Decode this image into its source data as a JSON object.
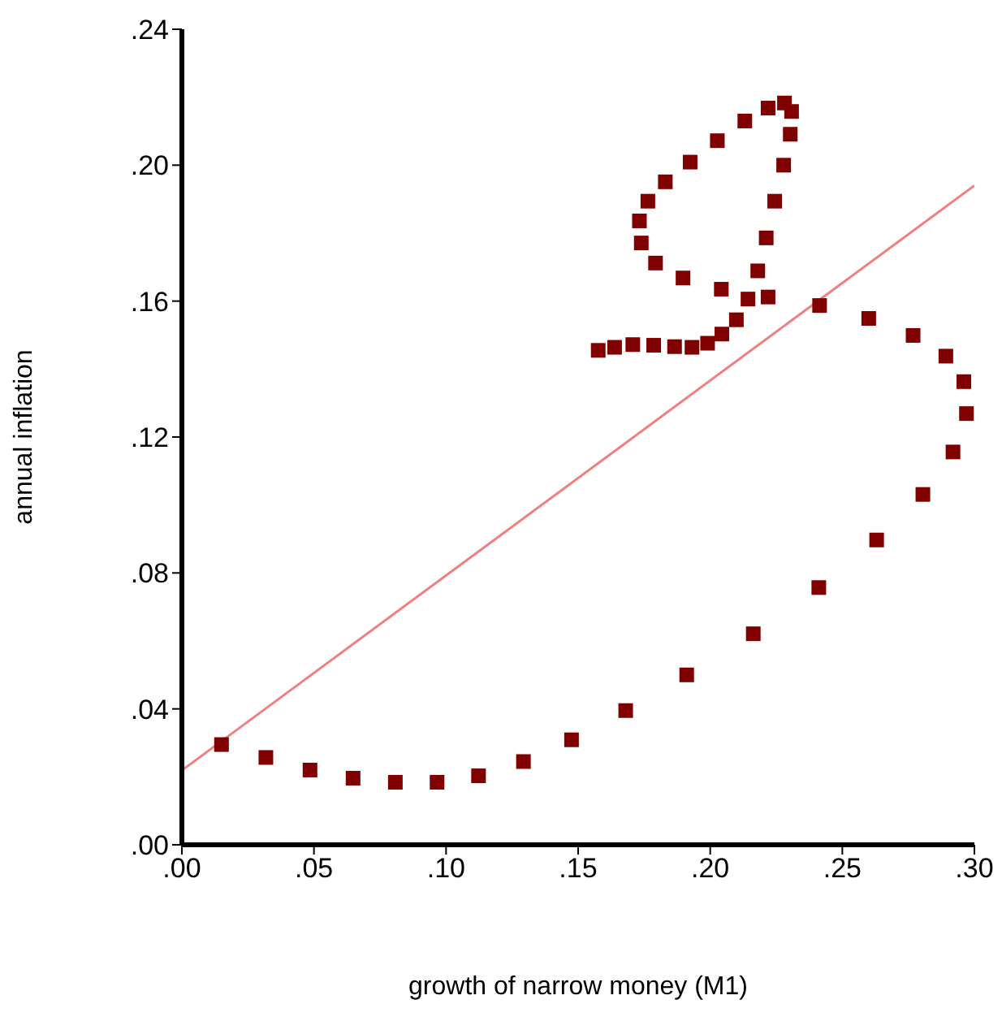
{
  "chart_data": {
    "type": "scatter",
    "xlabel": "growth of narrow money (M1)",
    "ylabel": "annual inflation",
    "xlim": [
      0,
      0.3
    ],
    "ylim": [
      0,
      0.24
    ],
    "xticks": [
      {
        "value": 0,
        "label": ".00"
      },
      {
        "value": 0.05,
        "label": ".05"
      },
      {
        "value": 0.1,
        "label": ".10"
      },
      {
        "value": 0.15,
        "label": ".15"
      },
      {
        "value": 0.2,
        "label": ".20"
      },
      {
        "value": 0.25,
        "label": ".25"
      },
      {
        "value": 0.3,
        "label": ".30"
      }
    ],
    "yticks": [
      {
        "value": 0,
        "label": ".00"
      },
      {
        "value": 0.04,
        "label": ".04"
      },
      {
        "value": 0.08,
        "label": ".08"
      },
      {
        "value": 0.12,
        "label": ".12"
      },
      {
        "value": 0.16,
        "label": ".16"
      },
      {
        "value": 0.2,
        "label": ".20"
      },
      {
        "value": 0.24,
        "label": ".24"
      }
    ],
    "grid": false,
    "series": [
      {
        "marker": "square",
        "color": "#800000",
        "x": [
          0.015,
          0.0318,
          0.0485,
          0.0648,
          0.0808,
          0.0966,
          0.1123,
          0.1293,
          0.1475,
          0.168,
          0.1911,
          0.2163,
          0.2411,
          0.263,
          0.2805,
          0.2919,
          0.297,
          0.296,
          0.2892,
          0.2768,
          0.26,
          0.2414,
          0.2219,
          0.2143,
          0.2099,
          0.2044,
          0.199,
          0.1931,
          0.1865,
          0.1786,
          0.1707,
          0.1638,
          0.1576,
          0.218,
          0.2212,
          0.2244,
          0.2278,
          0.2303,
          0.2308,
          0.2281,
          0.2219,
          0.2131,
          0.2027,
          0.1924,
          0.183,
          0.1764,
          0.1732,
          0.1739,
          0.1793,
          0.1897,
          0.2042
        ],
        "values": [
          0.0295,
          0.0257,
          0.022,
          0.0196,
          0.0184,
          0.0184,
          0.0203,
          0.0245,
          0.0309,
          0.0395,
          0.05,
          0.0621,
          0.0757,
          0.0897,
          0.1031,
          0.1156,
          0.1269,
          0.1363,
          0.1438,
          0.1499,
          0.1549,
          0.1587,
          0.1612,
          0.1606,
          0.1545,
          0.1503,
          0.1476,
          0.1464,
          0.1466,
          0.147,
          0.1472,
          0.1464,
          0.1455,
          0.1689,
          0.1786,
          0.1894,
          0.2,
          0.2091,
          0.2158,
          0.2183,
          0.2168,
          0.213,
          0.2072,
          0.2009,
          0.1951,
          0.1894,
          0.1836,
          0.1771,
          0.1712,
          0.1668,
          0.1635
        ]
      },
      {
        "type": "line",
        "color": "#f08080",
        "x": [
          0,
          0.3
        ],
        "values": [
          0.0219,
          0.194
        ]
      }
    ]
  }
}
